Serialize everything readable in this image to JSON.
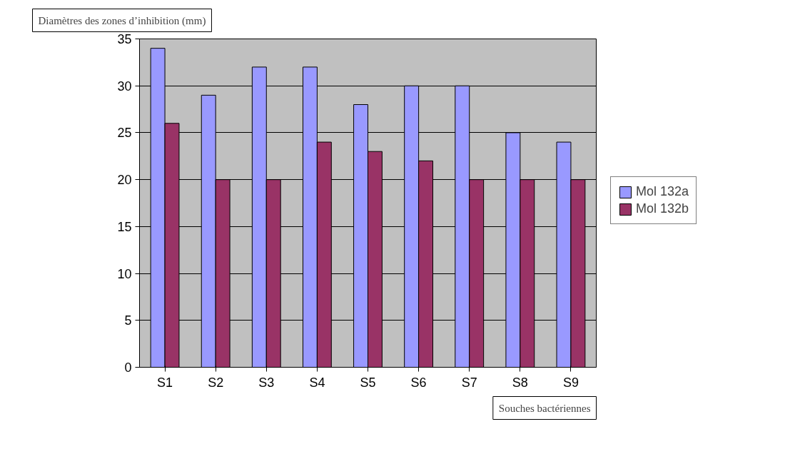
{
  "chart_data": {
    "type": "bar",
    "ylabel": "Diamètres des zones d’inhibition (mm)",
    "xlabel": "Souches bactériennes",
    "categories": [
      "S1",
      "S2",
      "S3",
      "S4",
      "S5",
      "S6",
      "S7",
      "S8",
      "S9"
    ],
    "series": [
      {
        "name": "Mol 132a",
        "color": "#9999ff",
        "values": [
          34,
          29,
          32,
          32,
          28,
          30,
          30,
          25,
          24
        ]
      },
      {
        "name": "Mol 132b",
        "color": "#993366",
        "values": [
          26,
          20,
          20,
          24,
          23,
          22,
          20,
          20,
          20
        ]
      }
    ],
    "ylim": [
      0,
      35
    ],
    "yticks": [
      0,
      5,
      10,
      15,
      20,
      25,
      30,
      35
    ],
    "grid": "y",
    "legend": "right"
  }
}
